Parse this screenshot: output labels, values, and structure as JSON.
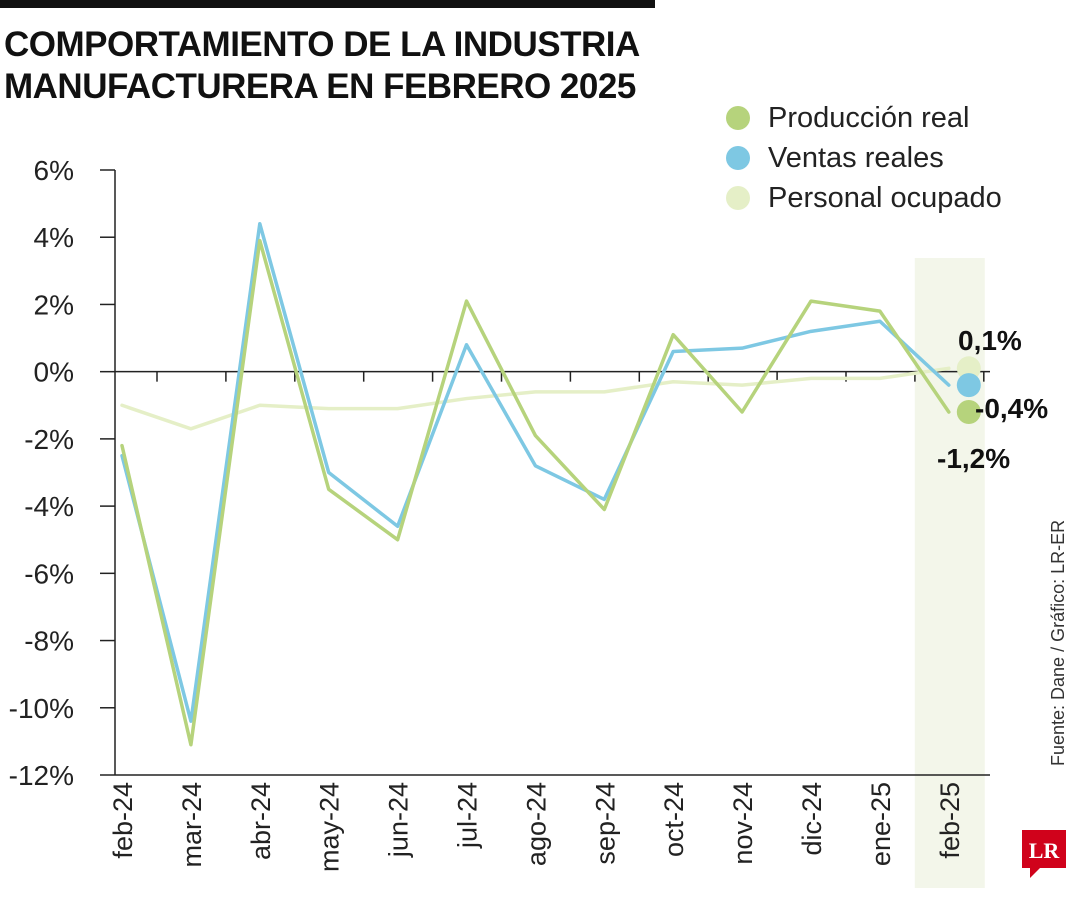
{
  "header": {
    "title_line1": "COMPORTAMIENTO DE LA INDUSTRIA",
    "title_line2": "MANUFACTURERA EN FEBRERO 2025"
  },
  "source": "Fuente: Dane / Gráfico: LR-ER",
  "logo": {
    "text": "LR",
    "color": "#d0021b"
  },
  "chart_data": {
    "type": "line",
    "title": "COMPORTAMIENTO DE LA INDUSTRIA MANUFACTURERA EN FEBRERO 2025",
    "xlabel": "",
    "ylabel": "",
    "categories": [
      "feb-24",
      "mar-24",
      "abr-24",
      "may-24",
      "jun-24",
      "jul-24",
      "ago-24",
      "sep-24",
      "oct-24",
      "nov-24",
      "dic-24",
      "ene-25",
      "feb-25"
    ],
    "ylim": [
      -12,
      6
    ],
    "yticks": [
      6,
      4,
      2,
      0,
      -2,
      -4,
      -6,
      -8,
      -10,
      -12
    ],
    "ytick_labels": [
      "6%",
      "4%",
      "2%",
      "0%",
      "-2%",
      "-4%",
      "-6%",
      "-8%",
      "-10%",
      "-12%"
    ],
    "grid": false,
    "legend_position": "top-right",
    "highlight_category": "feb-25",
    "series": [
      {
        "name": "Producción real",
        "color": "#b6d37c",
        "values": [
          -2.2,
          -11.1,
          3.9,
          -3.5,
          -5.0,
          2.1,
          -1.9,
          -4.1,
          1.1,
          -1.2,
          2.1,
          1.8,
          -1.2
        ],
        "end_label": "-1,2%"
      },
      {
        "name": "Ventas reales",
        "color": "#7ec8e3",
        "values": [
          -2.5,
          -10.4,
          4.4,
          -3.0,
          -4.6,
          0.8,
          -2.8,
          -3.8,
          0.6,
          0.7,
          1.2,
          1.5,
          -0.4
        ],
        "end_label": "-0,4%"
      },
      {
        "name": "Personal ocupado",
        "color": "#e5efc7",
        "values": [
          -1.0,
          -1.7,
          -1.0,
          -1.1,
          -1.1,
          -0.8,
          -0.6,
          -0.6,
          -0.3,
          -0.4,
          -0.2,
          -0.2,
          0.1
        ],
        "end_label": "0,1%"
      }
    ]
  }
}
